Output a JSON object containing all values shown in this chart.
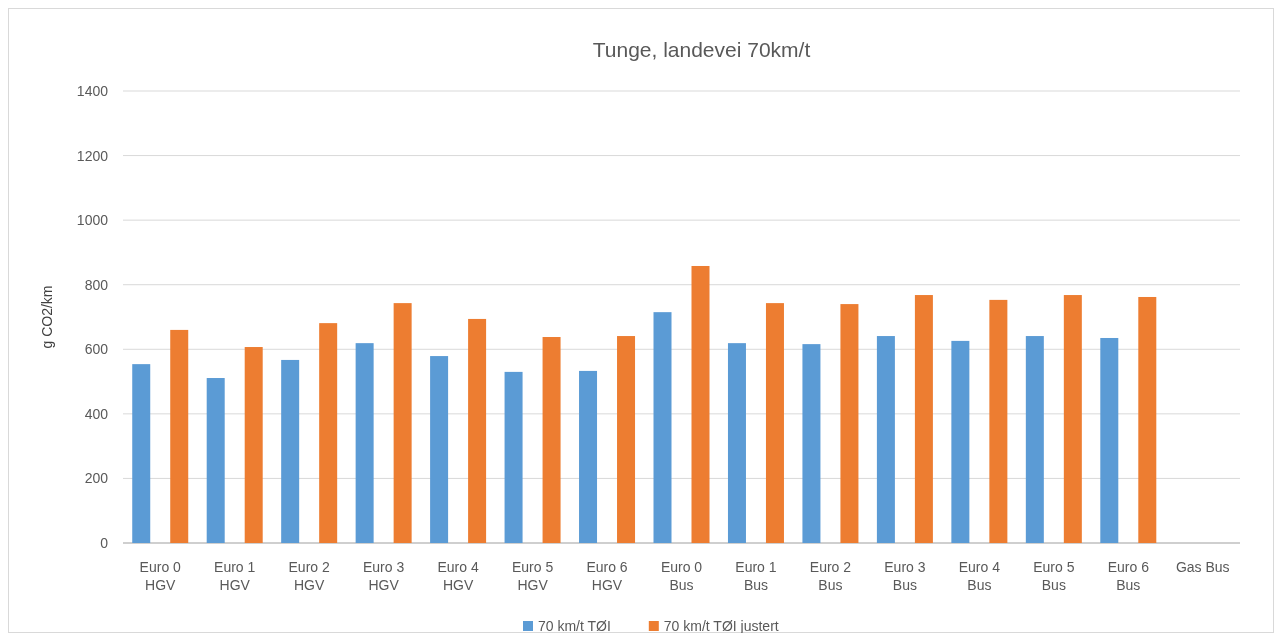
{
  "chart_data": {
    "type": "bar",
    "title": "Tunge, landevei 70km/t",
    "ylabel": "g CO2/km",
    "categories": [
      "Euro 0 HGV",
      "Euro 1 HGV",
      "Euro 2 HGV",
      "Euro 3 HGV",
      "Euro 4 HGV",
      "Euro 5 HGV",
      "Euro 6 HGV",
      "Euro 0 Bus",
      "Euro 1 Bus",
      "Euro 2 Bus",
      "Euro 3 Bus",
      "Euro 4 Bus",
      "Euro 5 Bus",
      "Euro 6 Bus",
      "Gas Bus"
    ],
    "series": [
      {
        "name": "70 km/t TØI",
        "color": "#5b9bd5",
        "values": [
          554,
          511,
          567,
          619,
          579,
          530,
          533,
          715,
          619,
          616,
          641,
          626,
          641,
          635,
          null
        ]
      },
      {
        "name": "70 km/t TØI justert",
        "color": "#ed7d31",
        "values": [
          660,
          607,
          681,
          743,
          694,
          638,
          641,
          858,
          743,
          740,
          768,
          753,
          768,
          762,
          null
        ]
      }
    ],
    "ylim": [
      0,
      1400
    ],
    "yticks": [
      0,
      200,
      400,
      600,
      800,
      1000,
      1200,
      1400
    ],
    "grid": "y",
    "legend": "bottom"
  }
}
